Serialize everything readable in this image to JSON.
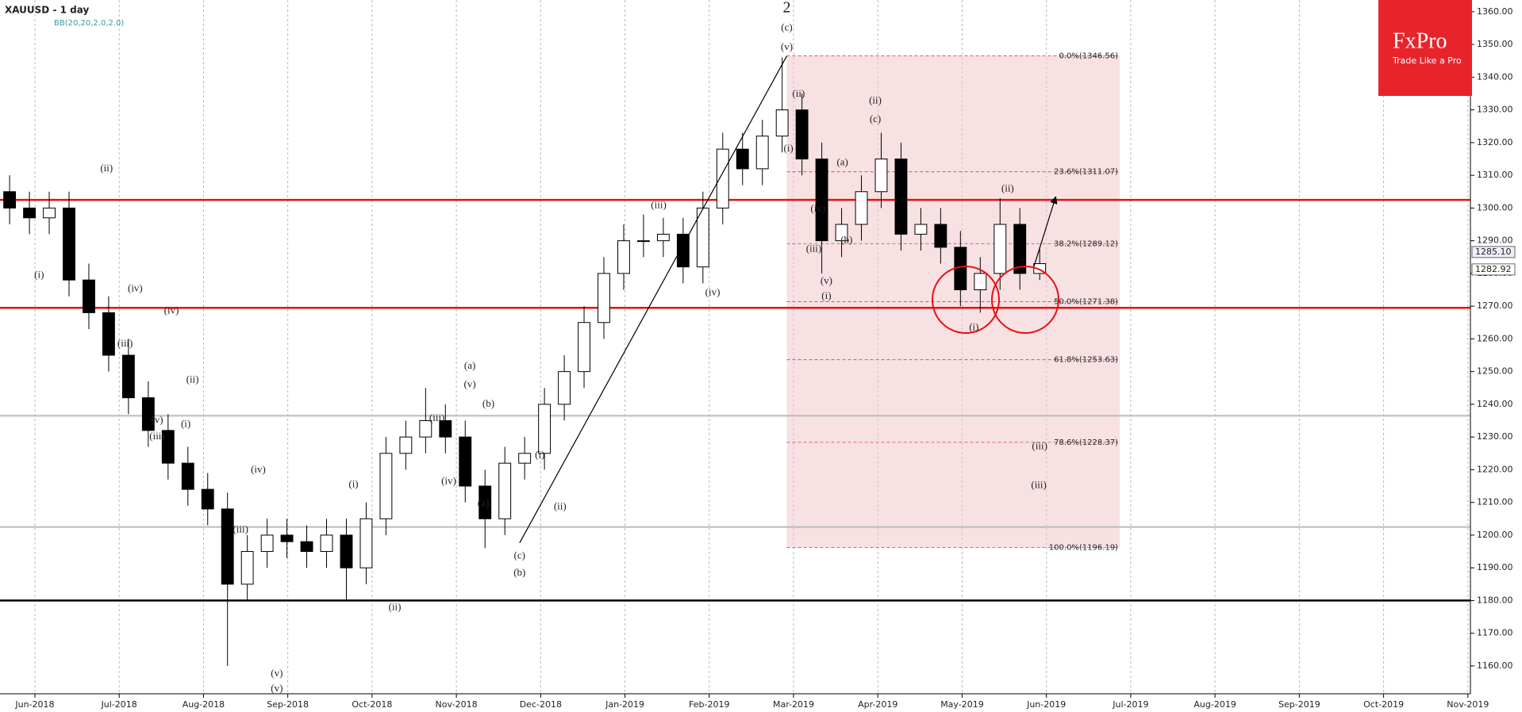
{
  "chart_data": {
    "type": "candlestick",
    "title": "XAUUSD - 1 day",
    "subtitle": "BB(20,20,2.0,2.0)",
    "x": [
      -0.3,
      -0.065,
      0.17,
      0.405,
      0.64,
      0.875,
      1.11,
      1.345,
      1.58,
      1.815,
      2.05,
      2.285,
      2.52,
      2.755,
      2.99,
      3.225,
      3.46,
      3.695,
      3.93,
      4.165,
      4.4,
      4.635,
      4.87,
      5.105,
      5.34,
      5.575,
      5.81,
      6.045,
      6.28,
      6.515,
      6.75,
      6.985,
      7.22,
      7.455,
      7.69,
      7.925,
      8.16,
      8.395,
      8.63,
      8.865,
      9.1,
      9.335,
      9.57,
      9.805,
      10.04,
      10.275,
      10.51,
      10.745,
      10.98,
      11.215,
      11.45,
      11.685,
      11.92
    ],
    "open": [
      1305,
      1300,
      1297,
      1300,
      1278,
      1268,
      1255,
      1242,
      1232,
      1222,
      1214,
      1208,
      1185,
      1195,
      1200,
      1198,
      1195,
      1200,
      1190,
      1205,
      1225,
      1230,
      1235,
      1230,
      1215,
      1205,
      1222,
      1225,
      1240,
      1250,
      1265,
      1280,
      1290,
      1290,
      1292,
      1282,
      1300,
      1318,
      1312,
      1322,
      1330,
      1315,
      1290,
      1295,
      1305,
      1315,
      1292,
      1295,
      1288,
      1275,
      1280,
      1295,
      1280
    ],
    "high": [
      1310,
      1305,
      1305,
      1305,
      1283,
      1273,
      1260,
      1247,
      1237,
      1227,
      1219,
      1213,
      1200,
      1205,
      1205,
      1203,
      1205,
      1205,
      1210,
      1230,
      1235,
      1245,
      1240,
      1235,
      1220,
      1227,
      1230,
      1245,
      1255,
      1270,
      1285,
      1295,
      1298,
      1297,
      1297,
      1305,
      1323,
      1323,
      1327,
      1346,
      1335,
      1320,
      1300,
      1310,
      1323,
      1320,
      1300,
      1300,
      1293,
      1285,
      1303,
      1300,
      1288
    ],
    "low": [
      1295,
      1292,
      1292,
      1273,
      1263,
      1250,
      1237,
      1227,
      1217,
      1209,
      1203,
      1160,
      1180,
      1190,
      1193,
      1190,
      1190,
      1180,
      1185,
      1200,
      1220,
      1225,
      1225,
      1210,
      1196,
      1200,
      1217,
      1220,
      1235,
      1245,
      1260,
      1275,
      1285,
      1285,
      1277,
      1277,
      1295,
      1307,
      1307,
      1317,
      1310,
      1280,
      1285,
      1290,
      1300,
      1287,
      1287,
      1283,
      1270,
      1268,
      1275,
      1275,
      1278
    ],
    "close": [
      1300,
      1297,
      1300,
      1278,
      1268,
      1255,
      1242,
      1232,
      1222,
      1214,
      1208,
      1185,
      1195,
      1200,
      1198,
      1195,
      1200,
      1190,
      1205,
      1225,
      1230,
      1235,
      1230,
      1215,
      1205,
      1222,
      1225,
      1240,
      1250,
      1265,
      1280,
      1290,
      1290,
      1292,
      1282,
      1300,
      1318,
      1312,
      1322,
      1330,
      1315,
      1290,
      1295,
      1305,
      1315,
      1292,
      1295,
      1288,
      1275,
      1280,
      1295,
      1280,
      1283
    ],
    "xlim": [
      -0.414,
      17.03
    ],
    "xticks": [
      {
        "value": 0,
        "label": "Jun-2018"
      },
      {
        "value": 1,
        "label": "Jul-2018"
      },
      {
        "value": 2,
        "label": "Aug-2018"
      },
      {
        "value": 3,
        "label": "Sep-2018"
      },
      {
        "value": 4,
        "label": "Oct-2018"
      },
      {
        "value": 5,
        "label": "Nov-2018"
      },
      {
        "value": 6,
        "label": "Dec-2018"
      },
      {
        "value": 7,
        "label": "Jan-2019"
      },
      {
        "value": 8,
        "label": "Feb-2019"
      },
      {
        "value": 9,
        "label": "Mar-2019"
      },
      {
        "value": 10,
        "label": "Apr-2019"
      },
      {
        "value": 11,
        "label": "May-2019"
      },
      {
        "value": 12,
        "label": "Jun-2019"
      },
      {
        "value": 13,
        "label": "Jul-2019"
      },
      {
        "value": 14,
        "label": "Aug-2019"
      },
      {
        "value": 15,
        "label": "Sep-2019"
      },
      {
        "value": 16,
        "label": "Oct-2019"
      },
      {
        "value": 17,
        "label": "Nov-2019"
      }
    ],
    "ylim": [
      1151.5,
      1363.6
    ],
    "yticks": [
      {
        "value": 1160,
        "label": "1160.00"
      },
      {
        "value": 1170,
        "label": "1170.00"
      },
      {
        "value": 1180,
        "label": "1180.00"
      },
      {
        "value": 1190,
        "label": "1190.00"
      },
      {
        "value": 1200,
        "label": "1200.00"
      },
      {
        "value": 1210,
        "label": "1210.00"
      },
      {
        "value": 1220,
        "label": "1220.00"
      },
      {
        "value": 1230,
        "label": "1230.00"
      },
      {
        "value": 1240,
        "label": "1240.00"
      },
      {
        "value": 1250,
        "label": "1250.00"
      },
      {
        "value": 1260,
        "label": "1260.00"
      },
      {
        "value": 1270,
        "label": "1270.00"
      },
      {
        "value": 1280,
        "label": "1280.00"
      },
      {
        "value": 1290,
        "label": "1290.00"
      },
      {
        "value": 1300,
        "label": "1300.00"
      },
      {
        "value": 1310,
        "label": "1310.00"
      },
      {
        "value": 1320,
        "label": "1320.00"
      },
      {
        "value": 1330,
        "label": "1330.00"
      },
      {
        "value": 1340,
        "label": "1340.00"
      },
      {
        "value": 1350,
        "label": "1350.00"
      },
      {
        "value": 1360,
        "label": "1360.00"
      }
    ],
    "grid": true,
    "levels": [
      {
        "value": 1302.5,
        "color": "#e81010"
      },
      {
        "value": 1269.5,
        "color": "#e81010"
      },
      {
        "value": 1236.5,
        "color": "#bbbbbb"
      },
      {
        "value": 1202.5,
        "color": "#bbbbbb"
      },
      {
        "value": 1180,
        "color": "#000000"
      }
    ],
    "fib_x": [
      8.92,
      12.87
    ],
    "fib": [
      {
        "label": "0.0%(1346.56)",
        "value": 1346.56
      },
      {
        "label": "23.6%(1311.07)",
        "value": 1311.07
      },
      {
        "label": "38.2%(1289.12)",
        "value": 1289.12
      },
      {
        "label": "50.0%(1271.38)",
        "value": 1271.38
      },
      {
        "label": "61.8%(1253.63)",
        "value": 1253.63
      },
      {
        "label": "78.6%(1228.37)",
        "value": 1228.37
      },
      {
        "label": "100.0%(1196.19)",
        "value": 1196.19
      }
    ],
    "lines": [
      {
        "x": [
          5.75,
          8.92
        ],
        "y": [
          1197.6,
          1346.5
        ]
      },
      {
        "x": [
          11.85,
          12.11
        ],
        "y": [
          1282,
          1303.4
        ]
      }
    ],
    "price_labels": [
      {
        "value": 1285.1,
        "label": "1285.10"
      },
      {
        "value": 1282.92,
        "label": "1282.92"
      }
    ],
    "annotations": [
      {
        "text": "2",
        "x": 8.92,
        "y": 1361
      },
      {
        "text": "(c)",
        "x": 8.92,
        "y": 1355
      },
      {
        "text": "(v)",
        "x": 8.92,
        "y": 1349
      },
      {
        "text": "(ii)",
        "x": 9.06,
        "y": 1334.8
      },
      {
        "text": "(i)",
        "x": 8.94,
        "y": 1318
      },
      {
        "text": "(iv)",
        "x": 9.29,
        "y": 1299.6
      },
      {
        "text": "(iii)",
        "x": 9.24,
        "y": 1287.4
      },
      {
        "text": "(v)",
        "x": 9.39,
        "y": 1277.6
      },
      {
        "text": "(i)",
        "x": 9.39,
        "y": 1272.9
      },
      {
        "text": "(a)",
        "x": 9.58,
        "y": 1313.8
      },
      {
        "text": "(b)",
        "x": 9.63,
        "y": 1290
      },
      {
        "text": "(c)",
        "x": 9.97,
        "y": 1327
      },
      {
        "text": "(ii)",
        "x": 9.97,
        "y": 1332.7
      },
      {
        "text": "(i)",
        "x": 11.14,
        "y": 1263.4
      },
      {
        "text": "(ii)",
        "x": 11.54,
        "y": 1305.8
      },
      {
        "text": "(iii)",
        "x": 11.92,
        "y": 1227
      },
      {
        "text": "(iii)",
        "x": 11.91,
        "y": 1215.1
      },
      {
        "text": "(ii)",
        "x": 0.85,
        "y": 1312
      },
      {
        "text": "(i)",
        "x": 0.05,
        "y": 1279.4
      },
      {
        "text": "(iv)",
        "x": 1.19,
        "y": 1275.3
      },
      {
        "text": "(iii)",
        "x": 1.07,
        "y": 1258.4
      },
      {
        "text": "(iv)",
        "x": 1.62,
        "y": 1268.4
      },
      {
        "text": "(ii)",
        "x": 1.87,
        "y": 1247.4
      },
      {
        "text": "(v)",
        "x": 1.45,
        "y": 1235
      },
      {
        "text": "(i)",
        "x": 1.79,
        "y": 1233.8
      },
      {
        "text": "(iii)",
        "x": 1.45,
        "y": 1230
      },
      {
        "text": "(iv)",
        "x": 2.65,
        "y": 1219.9
      },
      {
        "text": "(iii)",
        "x": 2.44,
        "y": 1201.5
      },
      {
        "text": "(v)",
        "x": 2.87,
        "y": 1157.6
      },
      {
        "text": "(v)",
        "x": 2.87,
        "y": 1153
      },
      {
        "text": "(i)",
        "x": 3.78,
        "y": 1215.4
      },
      {
        "text": "(ii)",
        "x": 4.27,
        "y": 1177.8
      },
      {
        "text": "(iii)",
        "x": 4.77,
        "y": 1235.6
      },
      {
        "text": "(iv)",
        "x": 4.91,
        "y": 1216.3
      },
      {
        "text": "(a)",
        "x": 5.16,
        "y": 1251.6
      },
      {
        "text": "(v)",
        "x": 5.16,
        "y": 1245.9
      },
      {
        "text": "(b)",
        "x": 5.38,
        "y": 1240
      },
      {
        "text": "(a)",
        "x": 5.32,
        "y": 1209.5
      },
      {
        "text": "(c)",
        "x": 5.75,
        "y": 1193.5
      },
      {
        "text": "(b)",
        "x": 5.75,
        "y": 1188.4
      },
      {
        "text": "(i)",
        "x": 5.99,
        "y": 1224.3
      },
      {
        "text": "(ii)",
        "x": 6.23,
        "y": 1208.6
      },
      {
        "text": "(iii)",
        "x": 7.4,
        "y": 1300.7
      },
      {
        "text": "(iv)",
        "x": 8.04,
        "y": 1274
      }
    ]
  },
  "logo": {
    "name": "FxPro",
    "tagline": "Trade Like a Pro"
  }
}
